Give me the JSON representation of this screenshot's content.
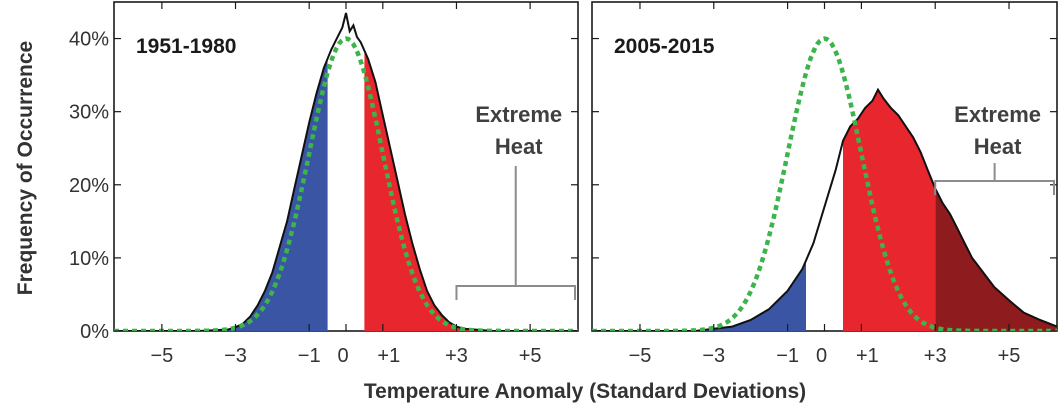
{
  "chart_data": {
    "type": "area",
    "ylabel": "Frequency of Occurrence",
    "xlabel": "Temperature Anomaly (Standard Deviations)",
    "y_ticks": [
      "0%",
      "10%",
      "20%",
      "30%",
      "40%"
    ],
    "x_ticks": [
      "−5",
      "−3",
      "−1",
      "0",
      "+1",
      "+3",
      "+5"
    ],
    "xlim": [
      -6.3,
      6.3
    ],
    "ylim": [
      0,
      45
    ],
    "colors": {
      "cold": "#3a55a4",
      "warm": "#e8262d",
      "extreme": "#8e1b1e",
      "reference_curve": "#3cb44b",
      "observed_curve": "#111111",
      "bracket": "#8c8c8c"
    },
    "panels": [
      {
        "title": "1951-1980",
        "annotation": [
          "Extreme",
          "Heat"
        ],
        "bracket_range": [
          3,
          6.3
        ],
        "observed": {
          "x": [
            -6.3,
            -4,
            -3.2,
            -3,
            -2.8,
            -2.6,
            -2.4,
            -2.2,
            -2,
            -1.8,
            -1.6,
            -1.4,
            -1.2,
            -1,
            -0.8,
            -0.6,
            -0.4,
            -0.3,
            -0.2,
            -0.1,
            0,
            0.1,
            0.2,
            0.3,
            0.4,
            0.6,
            0.8,
            1,
            1.2,
            1.4,
            1.6,
            1.8,
            2,
            2.2,
            2.4,
            2.6,
            2.8,
            3,
            3.2,
            4,
            6.3
          ],
          "y": [
            0,
            0,
            0.2,
            0.5,
            1,
            2,
            3.5,
            5.5,
            8,
            11.5,
            15,
            19.5,
            24,
            28.5,
            32.5,
            36,
            38.5,
            39.5,
            40.5,
            41.5,
            43.5,
            41,
            41.8,
            40.2,
            39.5,
            37.2,
            34,
            29.5,
            25,
            20.5,
            16,
            12,
            8.5,
            5.5,
            3.5,
            2.2,
            1.2,
            0.6,
            0.3,
            0,
            0
          ]
        },
        "reference": {
          "mean": 0,
          "sd": 1,
          "peak": 40
        },
        "fills": [
          {
            "name": "cold",
            "from": -6.3,
            "to": -0.5
          },
          {
            "name": "warm",
            "from": 0.5,
            "to": 6.3
          }
        ]
      },
      {
        "title": "2005-2015",
        "annotation": [
          "Extreme",
          "Heat"
        ],
        "bracket_range": [
          3,
          6.3
        ],
        "observed": {
          "x": [
            -6.3,
            -3.5,
            -3,
            -2.5,
            -2,
            -1.5,
            -1,
            -0.6,
            -0.3,
            0,
            0.3,
            0.5,
            0.7,
            0.9,
            1.1,
            1.3,
            1.45,
            1.6,
            1.8,
            2,
            2.2,
            2.4,
            2.6,
            2.8,
            3,
            3.2,
            3.4,
            3.6,
            3.8,
            4,
            4.3,
            4.6,
            5,
            5.4,
            5.8,
            6.3
          ],
          "y": [
            0,
            0,
            0.3,
            0.6,
            1.5,
            3,
            5.5,
            8.5,
            12,
            17,
            22,
            26,
            28,
            29,
            30.5,
            31.5,
            33,
            31.8,
            30.5,
            29.5,
            28,
            26.5,
            24.5,
            22,
            19.5,
            17.5,
            16,
            14,
            12,
            10,
            8,
            6,
            4.2,
            2.5,
            1.6,
            0.6
          ]
        },
        "reference": {
          "mean": 0,
          "sd": 1,
          "peak": 40
        },
        "fills": [
          {
            "name": "cold",
            "from": -6.3,
            "to": -0.5
          },
          {
            "name": "warm",
            "from": 0.5,
            "to": 3
          },
          {
            "name": "extreme",
            "from": 3,
            "to": 6.3
          }
        ]
      }
    ]
  }
}
